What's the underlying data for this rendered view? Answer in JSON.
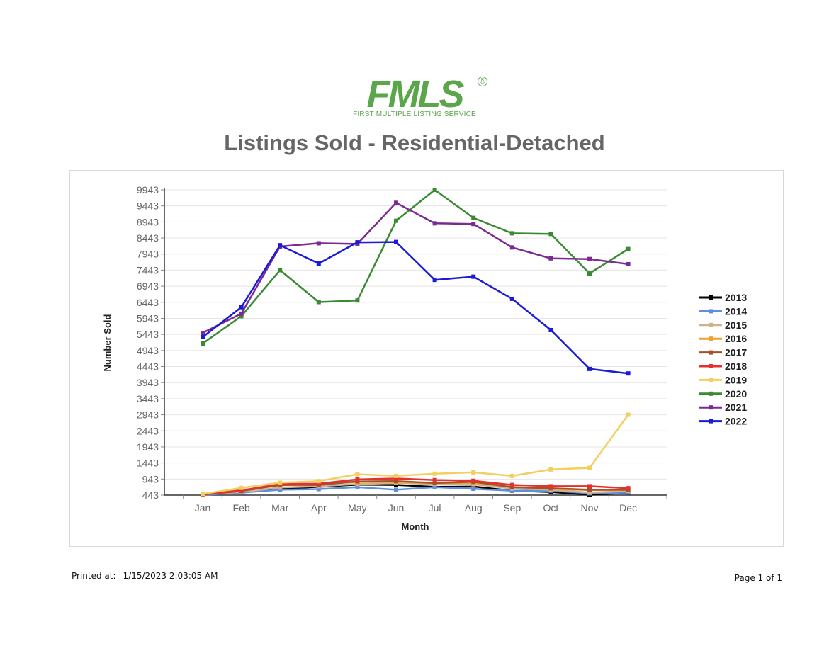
{
  "header": {
    "logo_text": "FMLS",
    "logo_subtitle": "FIRST MULTIPLE LISTING SERVICE",
    "logo_mark": "®",
    "title": "Listings Sold - Residential-Detached"
  },
  "footer": {
    "printed_label": "Printed at:",
    "printed_value": "1/15/2023 2:03:05 AM",
    "page": "Page 1 of 1"
  },
  "colors": {
    "logo": "#5aa64a",
    "gridline": "#e4e4e4",
    "axis": "#333333"
  },
  "chart_data": {
    "type": "line",
    "title": "",
    "xlabel": "Month",
    "ylabel": "Number Sold",
    "categories": [
      "Jan",
      "Feb",
      "Mar",
      "Apr",
      "May",
      "Jun",
      "Jul",
      "Aug",
      "Sep",
      "Oct",
      "Nov",
      "Dec"
    ],
    "yticks": [
      443,
      943,
      1443,
      1943,
      2443,
      2943,
      3443,
      3943,
      4443,
      4943,
      5443,
      5943,
      6443,
      6943,
      7443,
      7943,
      8443,
      8943,
      9443,
      9943
    ],
    "ylim": [
      443,
      9943
    ],
    "grid": true,
    "legend_position": "right",
    "series": [
      {
        "name": "2013",
        "color": "#000000",
        "values": [
          470,
          520,
          640,
          700,
          770,
          760,
          700,
          710,
          580,
          540,
          460,
          510
        ]
      },
      {
        "name": "2014",
        "color": "#5b8fe0",
        "values": [
          450,
          520,
          610,
          630,
          690,
          610,
          690,
          640,
          580,
          580,
          500,
          520
        ]
      },
      {
        "name": "2015",
        "color": "#d2b08c",
        "values": [
          470,
          540,
          680,
          720,
          790,
          820,
          790,
          780,
          650,
          610,
          520,
          570
        ]
      },
      {
        "name": "2016",
        "color": "#f0a030",
        "values": [
          480,
          600,
          750,
          800,
          850,
          860,
          810,
          830,
          690,
          640,
          600,
          600
        ]
      },
      {
        "name": "2017",
        "color": "#a0522d",
        "values": [
          460,
          570,
          760,
          760,
          870,
          880,
          820,
          860,
          690,
          660,
          610,
          610
        ]
      },
      {
        "name": "2018",
        "color": "#e53030",
        "values": [
          460,
          590,
          790,
          800,
          930,
          960,
          910,
          890,
          760,
          720,
          720,
          660
        ]
      },
      {
        "name": "2019",
        "color": "#f2d060",
        "values": [
          480,
          670,
          830,
          880,
          1090,
          1040,
          1110,
          1150,
          1040,
          1240,
          1290,
          2943
        ]
      },
      {
        "name": "2020",
        "color": "#3a8a34",
        "values": [
          5160,
          6010,
          7443,
          6450,
          6500,
          8980,
          9943,
          9070,
          8590,
          8570,
          7340,
          8100
        ]
      },
      {
        "name": "2021",
        "color": "#7a2a90",
        "values": [
          5490,
          6090,
          8180,
          8280,
          8260,
          9540,
          8900,
          8880,
          8150,
          7810,
          7790,
          7630
        ]
      },
      {
        "name": "2022",
        "color": "#1a1ad8",
        "values": [
          5360,
          6290,
          8220,
          7650,
          8310,
          8320,
          7140,
          7240,
          6550,
          5580,
          4370,
          4230
        ]
      }
    ]
  }
}
